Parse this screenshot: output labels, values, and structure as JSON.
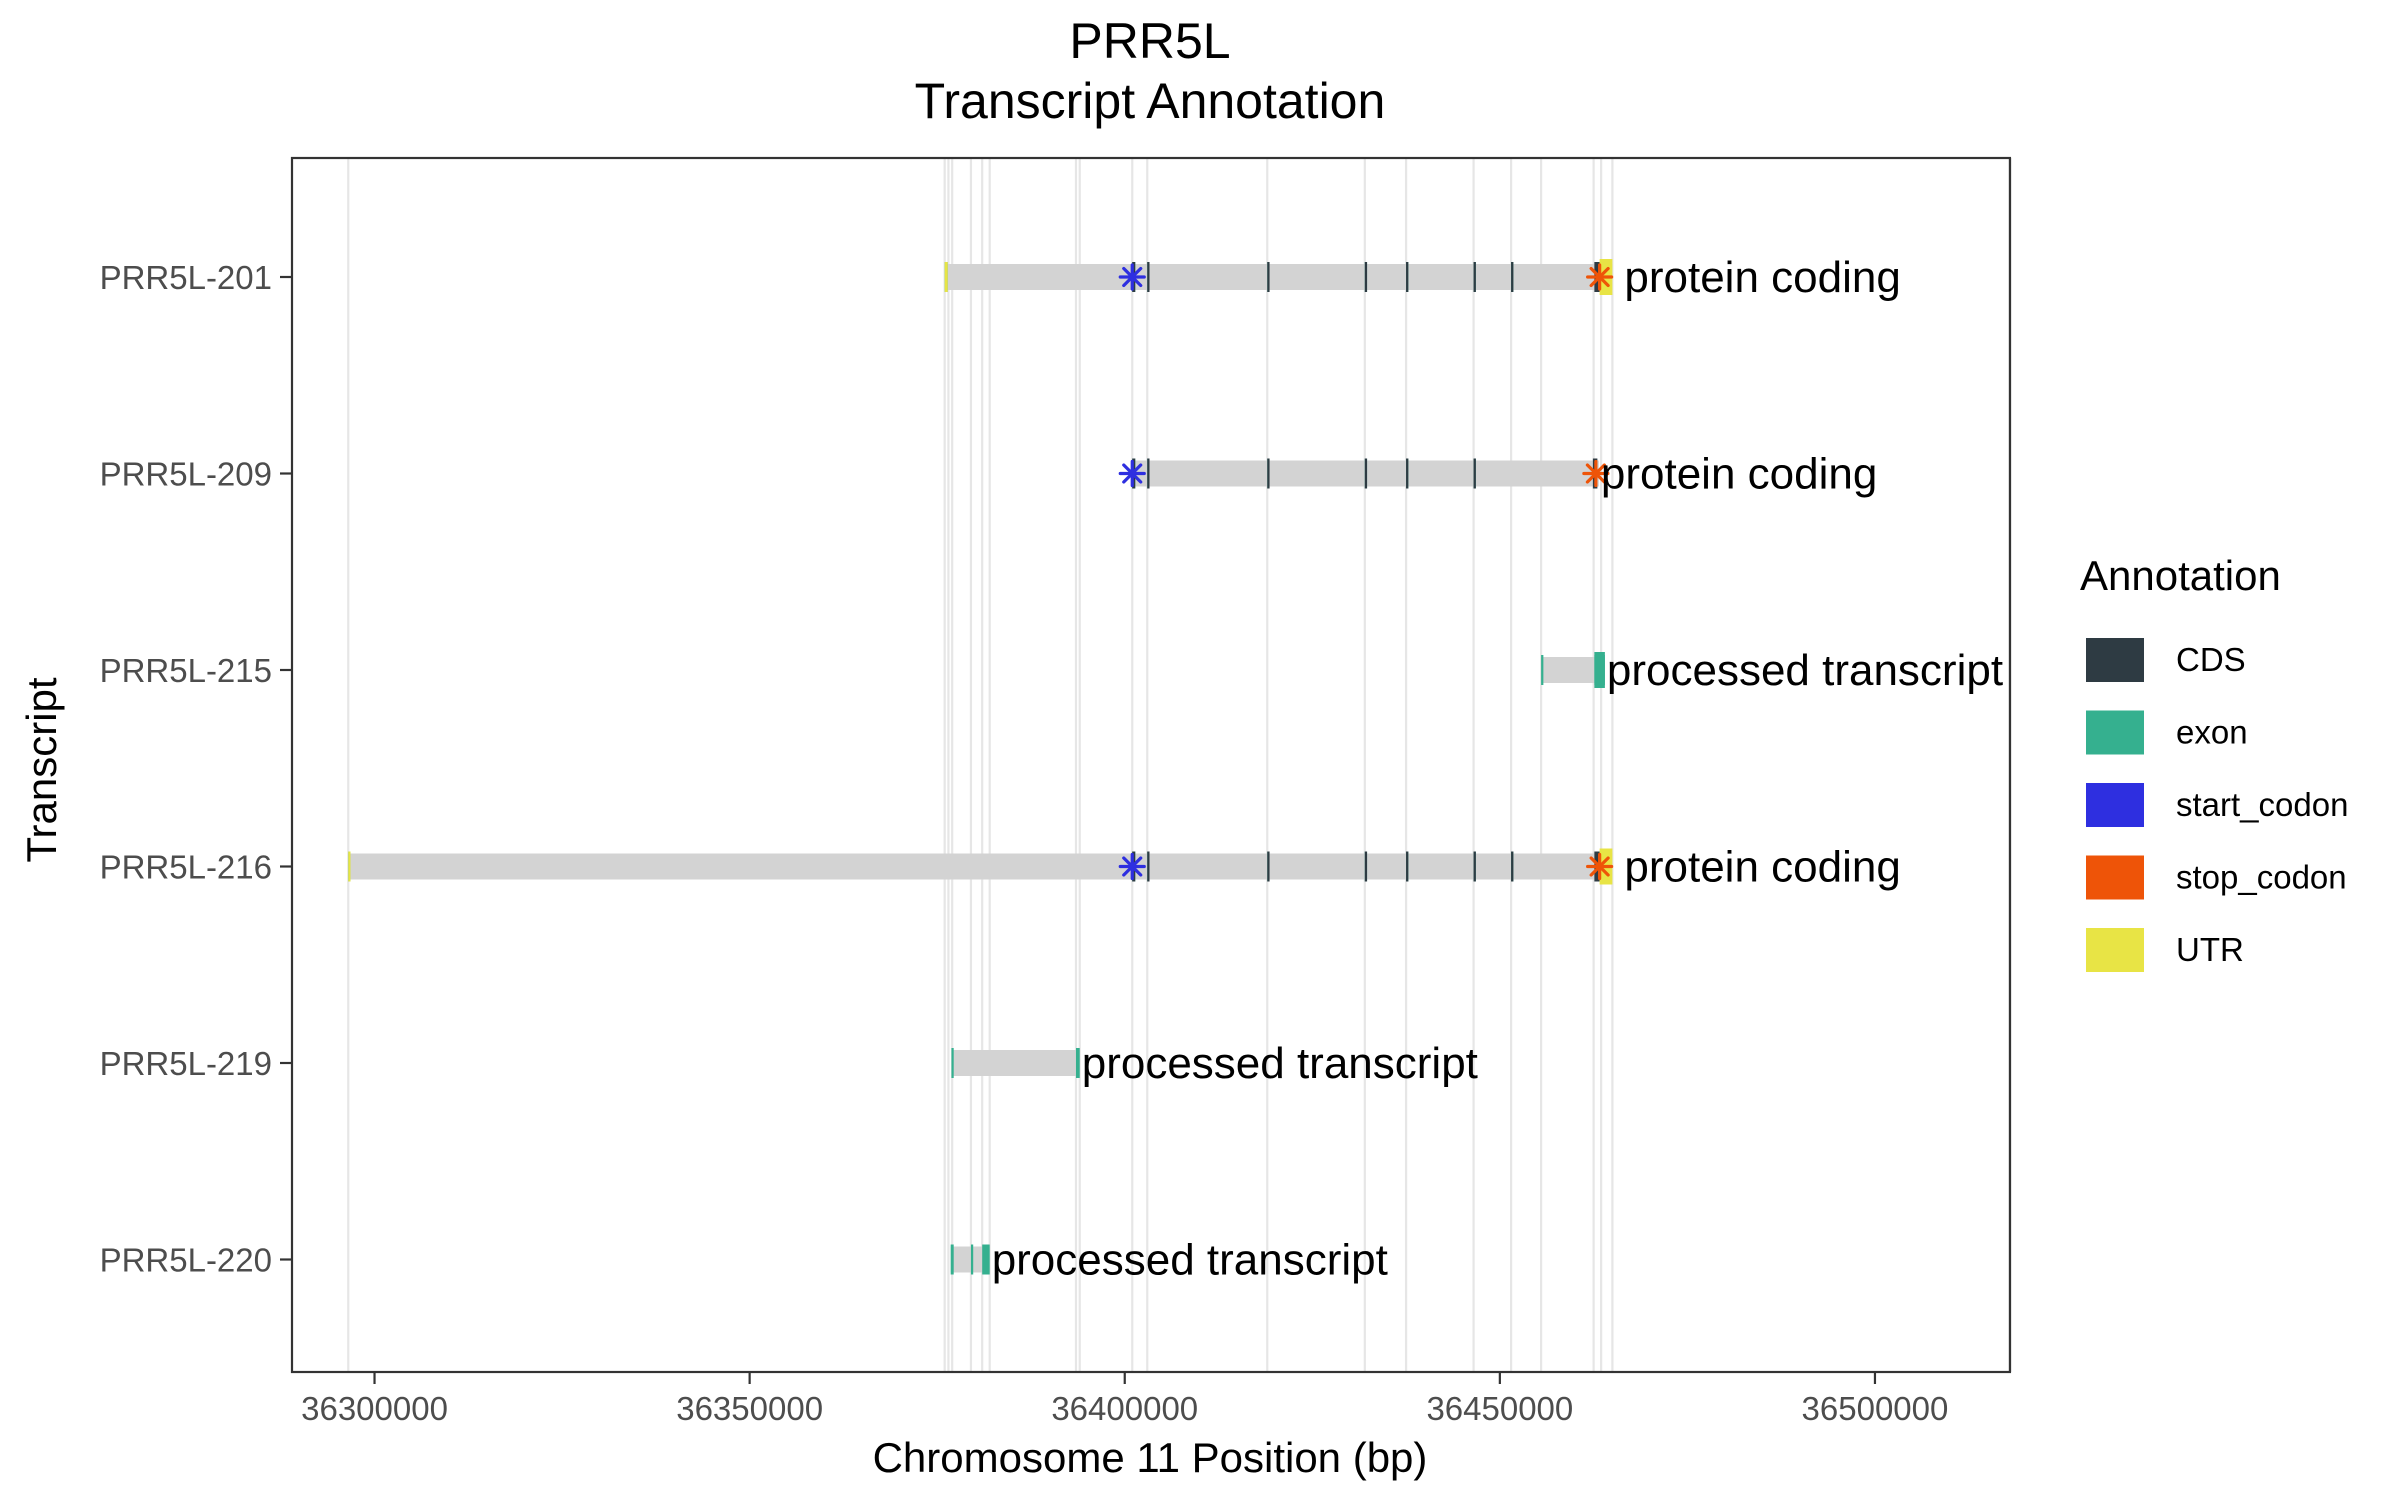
{
  "chart_data": {
    "type": "gene-track",
    "title": "PRR5L",
    "subtitle": "Transcript Annotation",
    "xlabel": "Chromosome 11 Position (bp)",
    "ylabel": "Transcript",
    "xlim": [
      36289000,
      36518000
    ],
    "x_ticks": [
      36300000,
      36350000,
      36400000,
      36450000,
      36500000
    ],
    "x_tick_labels": [
      "36300000",
      "36350000",
      "36400000",
      "36450000",
      "36500000"
    ],
    "grid": "vertical lines at exon/feature boundaries",
    "legend": {
      "title": "Annotation",
      "position": "right",
      "entries": [
        {
          "label": "CDS",
          "color": "#2e3b43"
        },
        {
          "label": "exon",
          "color": "#35b08f"
        },
        {
          "label": "start_codon",
          "color": "#2e2fe0"
        },
        {
          "label": "stop_codon",
          "color": "#ee5408"
        },
        {
          "label": "UTR",
          "color": "#e8e445"
        }
      ]
    },
    "colors": {
      "intron": "#d3d3d3",
      "CDS": "#2e3b43",
      "exon": "#35b08f",
      "start_codon": "#2e2fe0",
      "stop_codon": "#ee5408",
      "UTR": "#e8e445"
    },
    "feature_lines": [
      36296500,
      36376000,
      36376500,
      36377000,
      36379500,
      36381000,
      36382000,
      36393500,
      36394000,
      36401000,
      36403000,
      36419000,
      36432000,
      36437500,
      36446500,
      36451500,
      36455500,
      36462500,
      36463500,
      36465000
    ],
    "transcripts": [
      {
        "name": "PRR5L-220",
        "biotype": "processed transcript",
        "start": 36376800,
        "end": 36382000,
        "exons": [
          [
            36376800,
            36377200
          ],
          [
            36379500,
            36379800
          ],
          [
            36381000,
            36382000
          ]
        ],
        "cds": [],
        "utr": [],
        "start_codon": null,
        "stop_codon": null
      },
      {
        "name": "PRR5L-219",
        "biotype": "processed transcript",
        "start": 36376900,
        "end": 36394000,
        "exons": [
          [
            36376900,
            36377200
          ],
          [
            36393500,
            36394000
          ]
        ],
        "cds": [],
        "utr": [],
        "start_codon": null,
        "stop_codon": null
      },
      {
        "name": "PRR5L-216",
        "biotype": "protein coding",
        "start": 36296500,
        "end": 36465000,
        "exons": [
          [
            36296500,
            36296700
          ],
          [
            36401000,
            36401400
          ],
          [
            36403000,
            36403300
          ],
          [
            36419000,
            36419300
          ],
          [
            36432000,
            36432300
          ],
          [
            36437500,
            36437800
          ],
          [
            36446500,
            36446800
          ],
          [
            36451500,
            36451800
          ]
        ],
        "cds": [
          [
            36401000,
            36401400
          ],
          [
            36403000,
            36403300
          ],
          [
            36419000,
            36419300
          ],
          [
            36432000,
            36432300
          ],
          [
            36437500,
            36437800
          ],
          [
            36446500,
            36446800
          ],
          [
            36451500,
            36451800
          ],
          [
            36462600,
            36463300
          ]
        ],
        "utr": [
          [
            36296500,
            36296700
          ],
          [
            36463300,
            36465000
          ]
        ],
        "start_codon": 36401000,
        "stop_codon": 36463300
      },
      {
        "name": "PRR5L-215",
        "biotype": "processed transcript",
        "start": 36455500,
        "end": 36464000,
        "exons": [
          [
            36455500,
            36455800
          ],
          [
            36462600,
            36464000
          ]
        ],
        "cds": [],
        "utr": [],
        "start_codon": null,
        "stop_codon": null
      },
      {
        "name": "PRR5L-209",
        "biotype": "protein coding",
        "start": 36401000,
        "end": 36463200,
        "exons": [
          [
            36401000,
            36401400
          ],
          [
            36403000,
            36403300
          ],
          [
            36419000,
            36419300
          ],
          [
            36432000,
            36432300
          ],
          [
            36437500,
            36437800
          ],
          [
            36446500,
            36446800
          ]
        ],
        "cds": [
          [
            36401000,
            36401400
          ],
          [
            36403000,
            36403300
          ],
          [
            36419000,
            36419300
          ],
          [
            36432000,
            36432300
          ],
          [
            36437500,
            36437800
          ],
          [
            36446500,
            36446800
          ],
          [
            36462400,
            36463000
          ]
        ],
        "utr": [],
        "start_codon": 36401000,
        "stop_codon": 36462800
      },
      {
        "name": "PRR5L-201",
        "biotype": "protein coding",
        "start": 36376000,
        "end": 36465000,
        "exons": [
          [
            36376000,
            36376400
          ],
          [
            36401000,
            36401400
          ],
          [
            36403000,
            36403300
          ],
          [
            36419000,
            36419300
          ],
          [
            36432000,
            36432300
          ],
          [
            36437500,
            36437800
          ],
          [
            36446500,
            36446800
          ],
          [
            36451500,
            36451800
          ]
        ],
        "cds": [
          [
            36401000,
            36401400
          ],
          [
            36403000,
            36403300
          ],
          [
            36419000,
            36419300
          ],
          [
            36432000,
            36432300
          ],
          [
            36437500,
            36437800
          ],
          [
            36446500,
            36446800
          ],
          [
            36451500,
            36451800
          ],
          [
            36462600,
            36463300
          ]
        ],
        "utr": [
          [
            36376000,
            36376400
          ],
          [
            36463300,
            36465000
          ]
        ],
        "start_codon": 36401000,
        "stop_codon": 36463300
      }
    ]
  }
}
